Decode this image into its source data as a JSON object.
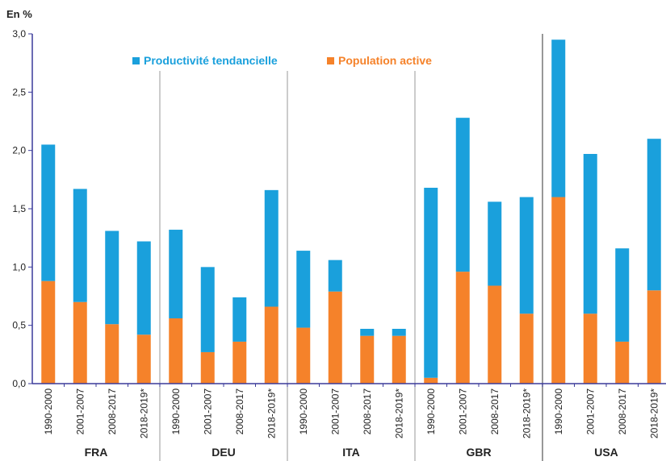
{
  "chart_data": {
    "type": "bar",
    "stacked": true,
    "unit_label": "En %",
    "ylim": [
      0,
      3.0
    ],
    "yticks": [
      "0,0",
      "0,5",
      "1,0",
      "1,5",
      "2,0",
      "2,5",
      "3,0"
    ],
    "ytick_values": [
      0,
      0.5,
      1.0,
      1.5,
      2.0,
      2.5,
      3.0
    ],
    "grid": false,
    "legend_position": "top",
    "groups": [
      {
        "name": "FRA",
        "categories": [
          "1990-2000",
          "2001-2007",
          "2008-2017",
          "2018-2019*"
        ],
        "population_active": [
          0.88,
          0.7,
          0.51,
          0.42
        ],
        "productivite_tendancielle": [
          1.17,
          0.97,
          0.8,
          0.8
        ]
      },
      {
        "name": "DEU",
        "categories": [
          "1990-2000",
          "2001-2007",
          "2008-2017",
          "2018-2019*"
        ],
        "population_active": [
          0.56,
          0.27,
          0.36,
          0.66
        ],
        "productivite_tendancielle": [
          0.76,
          0.73,
          0.38,
          1.0
        ]
      },
      {
        "name": "ITA",
        "categories": [
          "1990-2000",
          "2001-2007",
          "2008-2017",
          "2018-2019*"
        ],
        "population_active": [
          0.48,
          0.79,
          0.41,
          0.41
        ],
        "productivite_tendancielle": [
          0.66,
          0.27,
          0.06,
          0.06
        ]
      },
      {
        "name": "GBR",
        "categories": [
          "1990-2000",
          "2001-2007",
          "2008-2017",
          "2018-2019*"
        ],
        "population_active": [
          0.05,
          0.96,
          0.84,
          0.6
        ],
        "productivite_tendancielle": [
          1.63,
          1.32,
          0.72,
          1.0
        ]
      },
      {
        "name": "USA",
        "categories": [
          "1990-2000",
          "2001-2007",
          "2008-2017",
          "2018-2019*"
        ],
        "population_active": [
          1.6,
          0.6,
          0.36,
          0.8
        ],
        "productivite_tendancielle": [
          1.35,
          1.37,
          0.8,
          1.3
        ]
      }
    ],
    "series": [
      {
        "name": "Productivité tendancielle",
        "key": "productivite_tendancielle",
        "color": "#1aa0dc"
      },
      {
        "name": "Population active",
        "key": "population_active",
        "color": "#f5822a"
      }
    ]
  }
}
